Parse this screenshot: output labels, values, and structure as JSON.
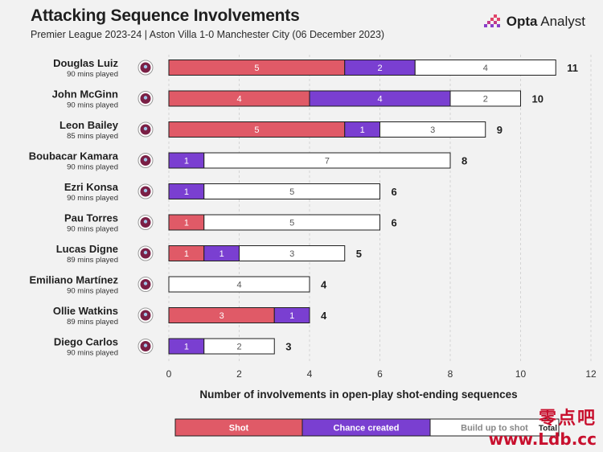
{
  "header": {
    "title": "Attacking Sequence Involvements",
    "subtitle": "Premier League 2023-24 | Aston Villa 1-0 Manchester City (06 December 2023)",
    "brand_bold": "Opta",
    "brand_light": " Analyst"
  },
  "watermark": {
    "line1": "零点吧",
    "line2": "www.Ldb.cc"
  },
  "colors": {
    "shot": "#e05a67",
    "chance": "#7a3fd1",
    "buildup": "#ffffff",
    "crest": "#7a1f45"
  },
  "chart_data": {
    "type": "bar",
    "orientation": "horizontal",
    "stacked": true,
    "xlabel": "Number of involvements in open-play shot-ending sequences",
    "xlim": [
      0,
      12
    ],
    "xticks": [
      0,
      2,
      4,
      6,
      8,
      10,
      12
    ],
    "categories": [
      "Douglas Luiz",
      "John McGinn",
      "Leon Bailey",
      "Boubacar Kamara",
      "Ezri Konsa",
      "Pau Torres",
      "Lucas Digne",
      "Emiliano Martínez",
      "Ollie Watkins",
      "Diego Carlos"
    ],
    "minutes": [
      "90 mins played",
      "90 mins played",
      "85 mins played",
      "90 mins played",
      "90 mins played",
      "90 mins played",
      "89 mins played",
      "90 mins played",
      "89 mins played",
      "90 mins played"
    ],
    "series": [
      {
        "name": "Shot",
        "values": [
          5,
          4,
          5,
          0,
          0,
          1,
          1,
          0,
          3,
          0
        ]
      },
      {
        "name": "Chance created",
        "values": [
          2,
          4,
          1,
          1,
          1,
          0,
          1,
          0,
          1,
          1
        ]
      },
      {
        "name": "Build up to shot",
        "values": [
          4,
          2,
          3,
          7,
          5,
          5,
          3,
          4,
          0,
          2
        ]
      }
    ],
    "totals": [
      11,
      10,
      9,
      8,
      6,
      6,
      5,
      4,
      4,
      3
    ],
    "legend": {
      "placement": "bottom-center",
      "total_label": "Total"
    }
  }
}
